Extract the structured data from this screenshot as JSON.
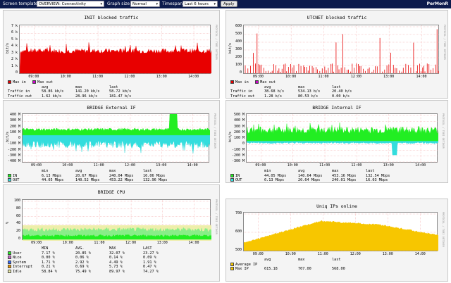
{
  "toolbar": {
    "template_label": "Screen template:",
    "template_value": "OVERVIEW: Connectivity",
    "graph_size_label": "Graph size:",
    "graph_size_value": "Normal",
    "timespan_label": "Timespan:",
    "timespan_value": "Last 6 hours",
    "apply_label": "Apply",
    "brand": "PerMonR"
  },
  "colors": {
    "topbar": "#0c1b4d",
    "red": "#e80000",
    "magenta": "#cc00cc",
    "cyan": "#33dddd",
    "green": "#22ee22",
    "yellow": "#f7c600"
  },
  "panels": [
    {
      "id": "init",
      "title": "INIT blocked traffic",
      "ylabel": "bit/s",
      "side": "PROTOCOL / TOBI OETIKER",
      "yticks": [
        "7 k",
        "6 k",
        "5 k",
        "4 k",
        "3 k",
        "2 k",
        "1 k",
        "0"
      ],
      "xticks": [
        "09:00",
        "10:00",
        "11:00",
        "12:00",
        "13:00",
        "14:00"
      ],
      "legend_top": [
        {
          "name": "Max in",
          "color": "#e80000"
        },
        {
          "name": "Max out",
          "color": "#cc00cc"
        }
      ],
      "stats_header": [
        "",
        "avg",
        "max",
        "last"
      ],
      "stats_rows": [
        [
          "Traffic in",
          "58.86 kb/s",
          "141.20 kb/s",
          "58.72 kb/s"
        ],
        [
          "Traffic out",
          "1.62 kb/s",
          "28.96 kb/s",
          "181.47 b/s"
        ]
      ]
    },
    {
      "id": "utcnet",
      "title": "UTCNET blocked traffic",
      "ylabel": "bit/s",
      "side": "PROTOCOL / TOBI OETIKER",
      "yticks": [
        "600",
        "500",
        "400",
        "300",
        "200",
        "100",
        "0"
      ],
      "xticks": [
        "09:00",
        "10:00",
        "11:00",
        "12:00",
        "13:00",
        "14:00"
      ],
      "legend_top": [
        {
          "name": "Max in",
          "color": "#e80000"
        },
        {
          "name": "Max out",
          "color": "#cc00cc"
        }
      ],
      "stats_header": [
        "",
        "avg",
        "max",
        "last"
      ],
      "stats_rows": [
        [
          "Traffic in",
          "38.68 b/s",
          "534.13 b/s",
          "20.40 b/s"
        ],
        [
          "Traffic out",
          "1.28 b/s",
          "80.53 b/s",
          "0.00 b/s"
        ]
      ]
    },
    {
      "id": "bridge_ext",
      "title": "BRIDGE External IF",
      "ylabel": "bit/s",
      "side": "PROTOCOL / TOBI OETIKER",
      "yticks": [
        "400 M",
        "300 M",
        "200 M",
        "100 M",
        "0",
        "-100 M",
        "-200 M",
        "-300 M",
        "-400 M"
      ],
      "xticks": [
        "09:00",
        "10:00",
        "11:00",
        "12:00",
        "13:00",
        "14:00"
      ],
      "stats_header": [
        "",
        "min",
        "avg",
        "max",
        "last"
      ],
      "stats_rows": [
        {
          "name": "IN",
          "color": "#22ee22",
          "vals": [
            "6.13 Mbps",
            "20.67 Mbps",
            "240.04 Mbps",
            "16.06 Mbps"
          ]
        },
        {
          "name": "OUT",
          "color": "#33dddd",
          "vals": [
            "44.05 Mbps",
            "140.52 Mbps",
            "453.22 Mbps",
            "132.96 Mbps"
          ]
        }
      ]
    },
    {
      "id": "bridge_int",
      "title": "BRIDGE Internal IF",
      "ylabel": "bit/s",
      "side": "PROTOCOL / TOBI OETIKER",
      "yticks": [
        "500 M",
        "400 M",
        "300 M",
        "200 M",
        "100 M",
        "0",
        "-100 M",
        "-200 M",
        "-300 M"
      ],
      "xticks": [
        "09:00",
        "10:00",
        "11:00",
        "12:00",
        "13:00",
        "14:00"
      ],
      "stats_header": [
        "",
        "min",
        "avg",
        "max",
        "last"
      ],
      "stats_rows": [
        {
          "name": "IN",
          "color": "#22ee22",
          "vals": [
            "44.05 Mbps",
            "140.64 Mbps",
            "453.16 Mbps",
            "132.54 Mbps"
          ]
        },
        {
          "name": "OUT",
          "color": "#33dddd",
          "vals": [
            "6.13 Mbps",
            "20.64 Mbps",
            "240.01 Mbps",
            "16.03 Mbps"
          ]
        }
      ]
    },
    {
      "id": "bridge_cpu",
      "title": "BRIDGE CPU",
      "ylabel": "%",
      "side": "PROTOCOL / TOBI OETIKER",
      "yticks": [
        "100",
        "80",
        "60",
        "40",
        "20",
        "0"
      ],
      "xticks": [
        "09:00",
        "10:00",
        "11:00",
        "12:00",
        "13:00",
        "14:00"
      ],
      "stats_header": [
        "",
        "MIN",
        "AVG.",
        "MAX",
        "LAST"
      ],
      "stats_rows": [
        {
          "name": "User",
          "color": "#22ee22",
          "vals": [
            "7.17 %",
            "20.85 %",
            "32.07 %",
            "23.27 %"
          ]
        },
        {
          "name": "Nice",
          "color": "#cc66cc",
          "vals": [
            "0.00 %",
            "0.06 %",
            "0.14 %",
            "0.09 %"
          ]
        },
        {
          "name": "System",
          "color": "#3366ff",
          "vals": [
            "1.71 %",
            "2.92 %",
            "4.49 %",
            "1.91 %"
          ]
        },
        {
          "name": "Interrupt",
          "color": "#ee9900",
          "vals": [
            "0.21 %",
            "0.69 %",
            "5.73 %",
            "0.47 %"
          ]
        },
        {
          "name": "Idle",
          "color": "#eeeeaa",
          "vals": [
            "58.84 %",
            "75.49 %",
            "89.97 %",
            "74.27 %"
          ]
        }
      ]
    },
    {
      "id": "uniq_ips",
      "title": "Uniq IPs online",
      "ylabel": "",
      "side": "PROTOCOL / TOBI OETIKER",
      "yticks": [
        "700",
        "600",
        "500"
      ],
      "xticks": [
        "09:00",
        "10:00",
        "11:00",
        "12:00",
        "13:00",
        "14:00"
      ],
      "stats_header": [
        "",
        "avg",
        "max",
        "last"
      ],
      "stats_rows": [
        {
          "name": "Average IP",
          "color": "#f7c600",
          "vals": [
            "",
            "",
            ""
          ]
        },
        {
          "name": "Max IP",
          "color": "#f7c600",
          "vals": [
            "615.18",
            "707.00",
            "568.00"
          ]
        }
      ]
    }
  ]
}
